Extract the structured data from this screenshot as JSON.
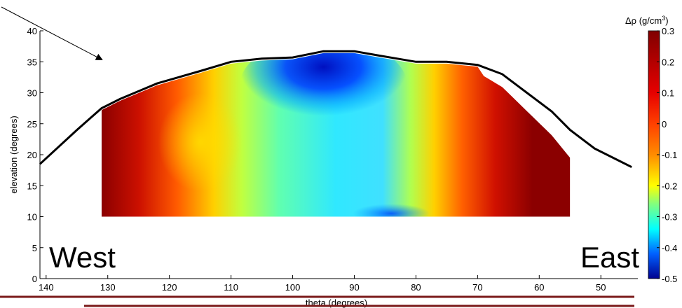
{
  "chart_data": {
    "type": "heatmap",
    "title": "",
    "xlabel": "theta (degrees)",
    "ylabel": "elevation (degrees)",
    "x_axis_reversed": true,
    "xlim": [
      141,
      44
    ],
    "ylim": [
      0,
      40
    ],
    "x_ticks": [
      140,
      130,
      120,
      110,
      100,
      90,
      80,
      70,
      60,
      50
    ],
    "y_ticks": [
      0,
      5,
      10,
      15,
      20,
      25,
      30,
      35,
      40
    ],
    "grid": false,
    "data_extent": {
      "theta": [
        131,
        55
      ],
      "elevation_bottom": 10
    },
    "annotations": [
      {
        "text": "West",
        "theta": 138,
        "elevation": 3.5
      },
      {
        "text": "East",
        "theta": 48,
        "elevation": 3.5
      }
    ],
    "profile_line": {
      "name": "",
      "theta": [
        141,
        135,
        131,
        128,
        122,
        115,
        110,
        105,
        100,
        95,
        90,
        86,
        83,
        80,
        75,
        70,
        66,
        62,
        58,
        55,
        51,
        45
      ],
      "elevation": [
        18.5,
        24,
        27.5,
        29,
        31.5,
        33.5,
        35,
        35.5,
        35.7,
        36.7,
        36.7,
        36,
        35.5,
        35,
        35,
        34.5,
        33,
        30,
        27,
        24,
        21,
        18
      ]
    },
    "colorbar": {
      "label": "Δρ (g/cm",
      "label_sup": "3",
      "label_close": ")",
      "range": [
        -0.5,
        0.3
      ],
      "ticks": [
        0.3,
        0.2,
        0.1,
        0,
        -0.1,
        -0.2,
        -0.3,
        -0.4,
        -0.5
      ],
      "tick_labels": [
        "0.3",
        "0.2",
        "0.1",
        "0",
        "-0.1",
        "-0.2",
        "-0.3",
        "-0.4",
        "-0.5"
      ],
      "colormap": "jet"
    },
    "annotation_arrow": {
      "from": "top-left",
      "to": "top of density map near theta 125"
    }
  },
  "colors": {
    "map_jet": [
      "#00008f",
      "#0000ff",
      "#00ffff",
      "#ffff00",
      "#ff0000",
      "#800000"
    ],
    "profile_line": "#000000",
    "bottom_rule": "#7a1a1a"
  }
}
